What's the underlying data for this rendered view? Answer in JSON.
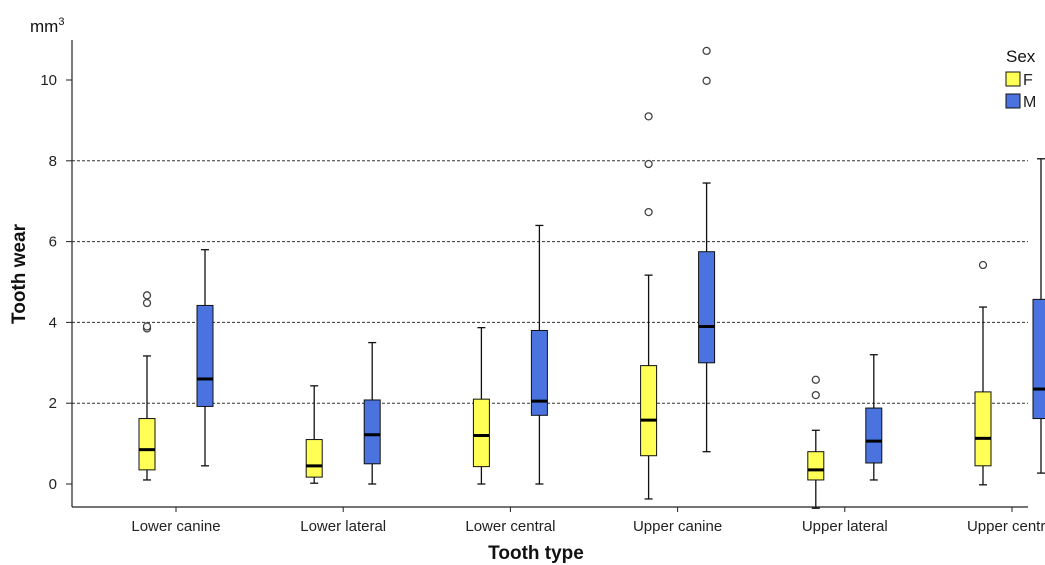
{
  "chart_data": {
    "type": "boxplot",
    "unit_label": "mm",
    "unit_superscript": "3",
    "xlabel": "Tooth type",
    "ylabel": "Tooth wear",
    "ylim": [
      -0.6,
      11.0
    ],
    "yticks": [
      0,
      2,
      4,
      6,
      8,
      10
    ],
    "dashed_gridlines": [
      2,
      4,
      6,
      8
    ],
    "categories": [
      "Lower canine",
      "Lower lateral",
      "Lower central",
      "Upper canine",
      "Upper lateral",
      "Upper central"
    ],
    "legend": {
      "title": "Sex",
      "position": "top-right"
    },
    "series": [
      {
        "name": "F",
        "color": "#ffff55",
        "boxes": [
          {
            "whisker_low": 0.1,
            "q1": 0.35,
            "median": 0.85,
            "q3": 1.62,
            "whisker_high": 3.17,
            "outliers": [
              3.85,
              3.9,
              4.48,
              4.67
            ]
          },
          {
            "whisker_low": 0.02,
            "q1": 0.17,
            "median": 0.45,
            "q3": 1.1,
            "whisker_high": 2.43,
            "outliers": []
          },
          {
            "whisker_low": 0.0,
            "q1": 0.43,
            "median": 1.2,
            "q3": 2.1,
            "whisker_high": 3.87,
            "outliers": []
          },
          {
            "whisker_low": -0.37,
            "q1": 0.7,
            "median": 1.58,
            "q3": 2.93,
            "whisker_high": 5.17,
            "outliers": [
              6.73,
              7.92,
              9.1
            ]
          },
          {
            "whisker_low": -0.6,
            "q1": 0.1,
            "median": 0.35,
            "q3": 0.8,
            "whisker_high": 1.33,
            "outliers": [
              2.2,
              2.58
            ]
          },
          {
            "whisker_low": -0.02,
            "q1": 0.45,
            "median": 1.13,
            "q3": 2.28,
            "whisker_high": 4.38,
            "outliers": [
              5.42
            ]
          }
        ]
      },
      {
        "name": "M",
        "color": "#4a73df",
        "boxes": [
          {
            "whisker_low": 0.45,
            "q1": 1.92,
            "median": 2.6,
            "q3": 4.42,
            "whisker_high": 5.8,
            "outliers": []
          },
          {
            "whisker_low": 0.0,
            "q1": 0.5,
            "median": 1.22,
            "q3": 2.08,
            "whisker_high": 3.5,
            "outliers": []
          },
          {
            "whisker_low": 0.0,
            "q1": 1.7,
            "median": 2.05,
            "q3": 3.8,
            "whisker_high": 6.4,
            "outliers": []
          },
          {
            "whisker_low": 0.8,
            "q1": 3.0,
            "median": 3.9,
            "q3": 5.75,
            "whisker_high": 7.45,
            "outliers": [
              9.98,
              10.72
            ]
          },
          {
            "whisker_low": 0.1,
            "q1": 0.52,
            "median": 1.06,
            "q3": 1.88,
            "whisker_high": 3.2,
            "outliers": []
          },
          {
            "whisker_low": 0.27,
            "q1": 1.62,
            "median": 2.35,
            "q3": 4.57,
            "whisker_high": 8.05,
            "outliers": []
          }
        ]
      }
    ]
  }
}
